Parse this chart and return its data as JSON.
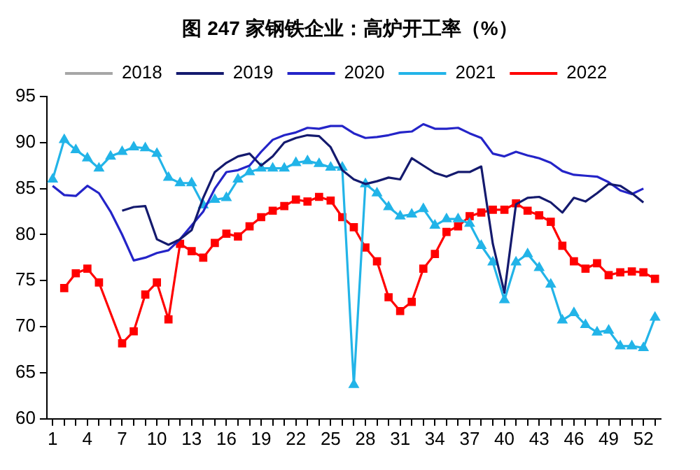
{
  "chart_data": {
    "type": "line",
    "title": "图 247 家钢铁企业：高炉开工率（%）",
    "categories": [
      "1",
      null,
      null,
      "4",
      null,
      null,
      "7",
      null,
      null,
      "10",
      null,
      null,
      "13",
      null,
      null,
      "16",
      null,
      null,
      "19",
      null,
      null,
      "22",
      null,
      null,
      "25",
      null,
      null,
      "28",
      null,
      null,
      "31",
      null,
      null,
      "34",
      null,
      null,
      "37",
      null,
      null,
      "40",
      null,
      null,
      "43",
      null,
      null,
      "46",
      null,
      null,
      "49",
      null,
      null,
      "52",
      null
    ],
    "ylim": [
      60,
      95
    ],
    "yticks": [
      60,
      65,
      70,
      75,
      80,
      85,
      90,
      95
    ],
    "grid": false,
    "legend": "top",
    "series": [
      {
        "name": "2018",
        "color": "#a6a6a6",
        "marker": "none",
        "values": [
          null,
          null,
          null,
          null,
          null,
          null,
          null,
          null,
          null,
          null,
          null,
          null,
          null,
          null,
          null,
          null,
          null,
          null,
          null,
          null,
          null,
          null,
          null,
          null,
          null,
          null,
          null,
          null,
          null,
          null,
          null,
          null,
          null,
          null,
          null,
          null,
          null,
          null,
          null,
          null,
          null,
          null,
          null,
          null,
          null,
          null,
          null,
          null,
          null,
          null,
          null,
          null,
          null
        ]
      },
      {
        "name": "2019",
        "color": "#141a6e",
        "marker": "none",
        "values": [
          null,
          null,
          null,
          null,
          null,
          null,
          82.6,
          83,
          83.1,
          79.5,
          78.9,
          79.5,
          80.5,
          84,
          86.8,
          87.8,
          88.5,
          88.8,
          87.5,
          88.5,
          90,
          90.5,
          90.8,
          90.7,
          89.5,
          87,
          86,
          85.5,
          85.8,
          86.2,
          86,
          88.3,
          87.5,
          86.7,
          86.3,
          86.8,
          86.8,
          87.4,
          79,
          73.7,
          83.3,
          84,
          84.1,
          83.5,
          82.4,
          84,
          83.6,
          84.5,
          85.5,
          85.3,
          84.5,
          83.5,
          null
        ]
      },
      {
        "name": "2020",
        "color": "#2424c8",
        "marker": "none",
        "values": [
          85.3,
          84.3,
          84.2,
          85.3,
          84.5,
          82.5,
          80,
          77.2,
          77.5,
          78,
          78.3,
          79.5,
          81,
          82.5,
          85,
          86.8,
          87,
          87.5,
          89,
          90.3,
          90.8,
          91.1,
          91.6,
          91.5,
          91.8,
          91.8,
          91,
          90.5,
          90.6,
          90.8,
          91.1,
          91.2,
          92,
          91.5,
          91.5,
          91.6,
          91,
          90.5,
          88.8,
          88.5,
          89,
          88.6,
          88.3,
          87.8,
          86.9,
          86.5,
          86.4,
          86.3,
          85.7,
          84.8,
          84.4,
          85,
          null
        ]
      },
      {
        "name": "2021",
        "color": "#22b4e8",
        "marker": "triangle",
        "values": [
          86,
          90.3,
          89.2,
          88.3,
          87.2,
          88.5,
          89,
          89.5,
          89.4,
          88.8,
          86.2,
          85.6,
          85.6,
          83.2,
          83.8,
          84,
          86,
          86.8,
          87.2,
          87.2,
          87.2,
          87.8,
          88,
          87.7,
          87.3,
          87.3,
          63.7,
          85.5,
          84.5,
          83,
          82,
          82.2,
          82.8,
          81,
          81.7,
          81.7,
          81.2,
          78.8,
          77,
          72.9,
          77,
          77.9,
          76.4,
          74.6,
          70.7,
          71.5,
          70.2,
          69.4,
          69.6,
          67.9,
          67.9,
          67.7,
          71
        ]
      },
      {
        "name": "2022",
        "color": "#ff0000",
        "marker": "square",
        "values": [
          null,
          74.2,
          75.8,
          76.3,
          74.8,
          null,
          68.2,
          69.5,
          73.5,
          74.8,
          70.8,
          79,
          78.2,
          77.5,
          79.1,
          80.1,
          79.8,
          80.9,
          81.9,
          82.6,
          83.1,
          83.8,
          83.6,
          84.1,
          83.7,
          81.9,
          80.8,
          78.6,
          77.1,
          73.2,
          71.7,
          72.7,
          76.3,
          77.9,
          80.3,
          80.9,
          82,
          82.4,
          82.7,
          82.7,
          83.4,
          82.6,
          82.1,
          81.4,
          78.8,
          77.1,
          76.3,
          76.9,
          75.6,
          75.9,
          76,
          75.9,
          75.2
        ]
      }
    ]
  }
}
